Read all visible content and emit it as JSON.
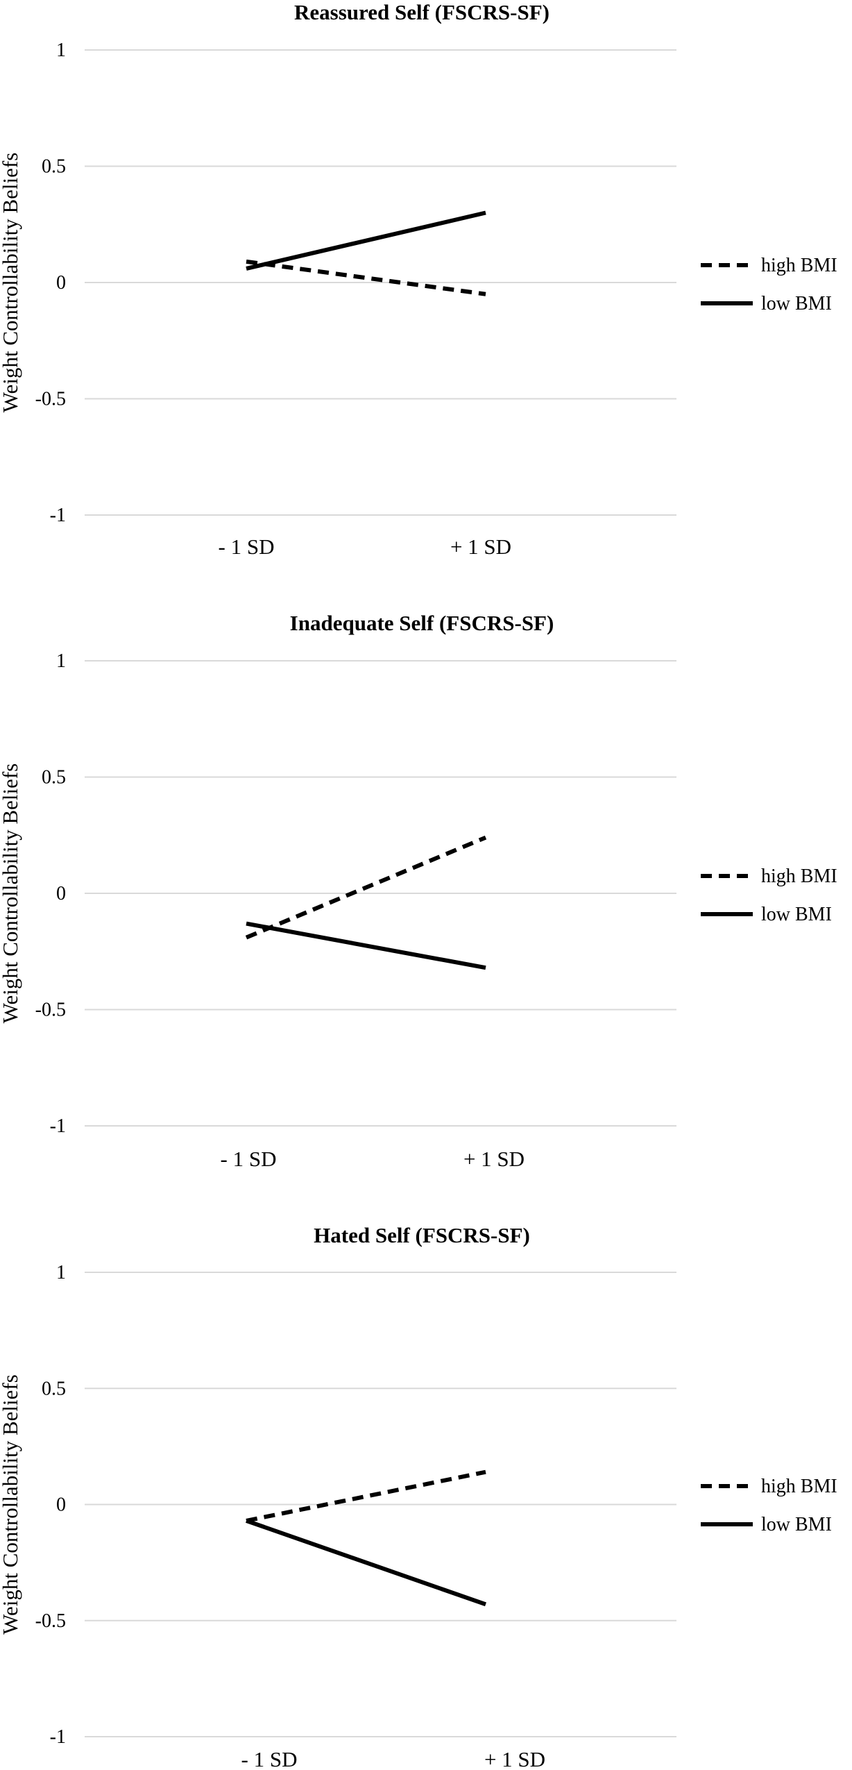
{
  "chart_data": [
    {
      "type": "line",
      "title": "Reassured Self (FSCRS-SF)",
      "ylabel": "Weight Controllability Beliefs",
      "xlabel": "",
      "categories": [
        "- 1 SD",
        "+ 1 SD"
      ],
      "ylim": [
        -1,
        1
      ],
      "yticks": [
        "1",
        "0.5",
        "0",
        "-0.5",
        "-1"
      ],
      "grid": true,
      "legend_position": "right",
      "series": [
        {
          "name": "high BMI",
          "style": "dashed",
          "values": [
            0.09,
            -0.05
          ]
        },
        {
          "name": "low BMI",
          "style": "solid",
          "values": [
            0.06,
            0.3
          ]
        }
      ]
    },
    {
      "type": "line",
      "title": "Inadequate Self (FSCRS-SF)",
      "ylabel": "Weight Controllability Beliefs",
      "xlabel": "",
      "categories": [
        "- 1 SD",
        "+ 1 SD"
      ],
      "ylim": [
        -1,
        1
      ],
      "yticks": [
        "1",
        "0.5",
        "0",
        "-0.5",
        "-1"
      ],
      "grid": true,
      "legend_position": "right",
      "series": [
        {
          "name": "high BMI",
          "style": "dashed",
          "values": [
            -0.19,
            0.24
          ]
        },
        {
          "name": "low BMI",
          "style": "solid",
          "values": [
            -0.13,
            -0.32
          ]
        }
      ]
    },
    {
      "type": "line",
      "title": "Hated Self (FSCRS-SF)",
      "ylabel": "Weight Controllability Beliefs",
      "xlabel": "",
      "categories": [
        "- 1 SD",
        "+ 1 SD"
      ],
      "ylim": [
        -1,
        1
      ],
      "yticks": [
        "1",
        "0.5",
        "0",
        "-0.5",
        "-1"
      ],
      "grid": true,
      "legend_position": "right",
      "series": [
        {
          "name": "high BMI",
          "style": "dashed",
          "values": [
            -0.07,
            0.14
          ]
        },
        {
          "name": "low BMI",
          "style": "solid",
          "values": [
            -0.07,
            -0.43
          ]
        }
      ]
    }
  ],
  "colors": {
    "line": "#000000",
    "grid": "#d9d9d9",
    "background": "#ffffff"
  }
}
